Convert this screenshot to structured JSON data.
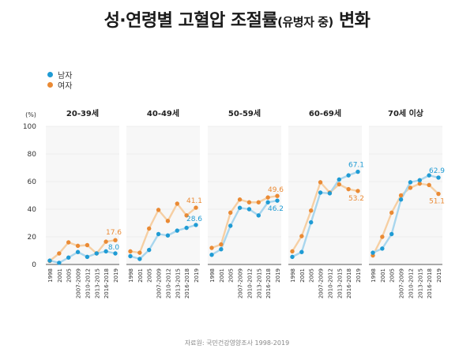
{
  "title": {
    "main": "성·연령별 고혈압 조절률",
    "sub": "(유병자 중)",
    "tail": " 변화"
  },
  "legend": [
    {
      "label": "남자",
      "color": "#1f9bd4"
    },
    {
      "label": "여자",
      "color": "#ea8a34"
    }
  ],
  "source": "자료원: 국민건강영양조사 1998-2019",
  "chart_data": {
    "type": "line",
    "yunit": "(%)",
    "ylim": [
      0,
      100
    ],
    "yticks": [
      "0",
      "20",
      "40",
      "60",
      "80",
      "100"
    ],
    "categories": [
      "1998",
      "2001",
      "2005",
      "2007-2009",
      "2010-2012",
      "2013-2015",
      "2016-2018",
      "2019"
    ],
    "colors": {
      "male_line": "#a8d6ee",
      "male_dot": "#1f9bd4",
      "female_line": "#f6cfa3",
      "female_dot": "#ea8a34"
    },
    "panels": [
      {
        "title": "20-39세",
        "male": [
          2.8,
          1.2,
          5.0,
          9.0,
          5.5,
          8.0,
          9.5,
          8.0
        ],
        "female": [
          2.6,
          8.0,
          16.0,
          13.5,
          14.0,
          8.0,
          16.5,
          17.6
        ],
        "male_label": "8.0",
        "female_label": "17.6"
      },
      {
        "title": "40-49세",
        "male": [
          6.0,
          4.0,
          10.5,
          22.0,
          21.0,
          24.5,
          26.5,
          28.6
        ],
        "female": [
          9.5,
          8.5,
          26.0,
          39.5,
          31.5,
          44.0,
          35.5,
          41.1
        ],
        "male_label": "28.6",
        "female_label": "41.1"
      },
      {
        "title": "50-59세",
        "male": [
          7.0,
          11.0,
          28.0,
          41.0,
          40.0,
          35.5,
          45.0,
          46.2
        ],
        "female": [
          12.0,
          14.5,
          37.5,
          47.0,
          45.0,
          45.0,
          48.5,
          49.6
        ],
        "male_label": "46.2",
        "female_label": "49.6"
      },
      {
        "title": "60-69세",
        "male": [
          5.5,
          9.0,
          30.5,
          52.0,
          51.5,
          61.5,
          64.5,
          67.1
        ],
        "female": [
          9.5,
          20.5,
          39.0,
          59.5,
          52.0,
          58.0,
          54.5,
          53.2
        ],
        "male_label": "67.1",
        "female_label": "53.2"
      },
      {
        "title": "70세 이상",
        "male": [
          8.5,
          11.5,
          22.0,
          47.0,
          59.5,
          61.0,
          64.5,
          62.9
        ],
        "female": [
          6.5,
          20.0,
          37.5,
          50.0,
          55.5,
          58.5,
          57.5,
          51.1
        ],
        "male_label": "62.9",
        "female_label": "51.1"
      }
    ]
  }
}
